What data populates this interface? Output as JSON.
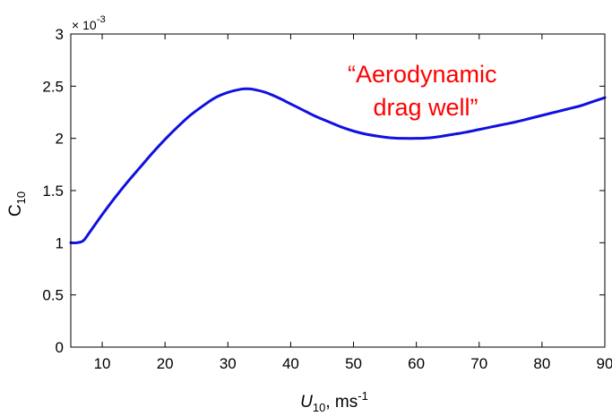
{
  "chart_data": {
    "type": "line",
    "title": "",
    "xlabel_main": "U",
    "xlabel_sub": "10",
    "xlabel_unit": ", ms",
    "xlabel_sup": "-1",
    "ylabel_main": "C",
    "ylabel_sub": "10",
    "y_multiplier": {
      "base": "× 10",
      "exponent": "-3"
    },
    "xlim": [
      5,
      90
    ],
    "ylim": [
      0,
      3
    ],
    "x_ticks": [
      10,
      20,
      30,
      40,
      50,
      60,
      70,
      80,
      90
    ],
    "x_tick_labels": [
      "10",
      "20",
      "30",
      "40",
      "50",
      "60",
      "70",
      "80",
      "90"
    ],
    "y_ticks": [
      0,
      0.5,
      1,
      1.5,
      2,
      2.5,
      3
    ],
    "y_tick_labels": [
      "0",
      "0.5",
      "1",
      "1.5",
      "2",
      "2.5",
      "3"
    ],
    "grid": false,
    "series": [
      {
        "color": "#1010e0",
        "x": [
          5,
          6,
          7,
          8,
          10,
          12,
          14,
          16,
          18,
          20,
          22,
          24,
          26,
          28,
          30,
          32,
          33,
          34,
          36,
          38,
          40,
          42,
          44,
          46,
          48,
          50,
          52,
          54,
          56,
          58,
          60,
          62,
          64,
          66,
          68,
          70,
          72,
          74,
          76,
          78,
          80,
          82,
          84,
          86,
          88,
          90
        ],
        "y": [
          1.0,
          1.0,
          1.02,
          1.1,
          1.27,
          1.43,
          1.58,
          1.72,
          1.86,
          1.99,
          2.11,
          2.22,
          2.31,
          2.39,
          2.44,
          2.47,
          2.475,
          2.47,
          2.44,
          2.39,
          2.33,
          2.27,
          2.21,
          2.16,
          2.11,
          2.07,
          2.04,
          2.02,
          2.005,
          2.0,
          2.0,
          2.005,
          2.02,
          2.04,
          2.06,
          2.085,
          2.11,
          2.135,
          2.16,
          2.19,
          2.22,
          2.25,
          2.28,
          2.31,
          2.35,
          2.39
        ]
      }
    ],
    "annotation": {
      "lines": [
        "“Aerodynamic",
        "drag well”"
      ],
      "color": "#ff0000"
    }
  }
}
